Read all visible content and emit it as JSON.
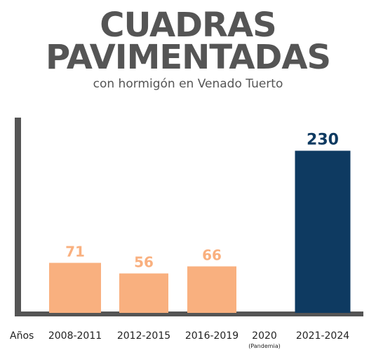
{
  "title_line1": "CUADRAS",
  "title_line2": "PAVIMENTADAS",
  "subtitle": "con hormigón en Venado Tuerto",
  "colors": {
    "bar_light": "#F9B07F",
    "bar_dark": "#0E3A61",
    "axis": "#555555",
    "text": "#222222"
  },
  "chart_data": {
    "type": "bar",
    "xlabel": "Años",
    "categories": [
      "2008-2011",
      "2012-2015",
      "2016-2019",
      "2020",
      "2021-2024"
    ],
    "category_notes": [
      "",
      "",
      "",
      "(Pandemia)",
      ""
    ],
    "values": [
      71,
      56,
      66,
      null,
      230
    ],
    "data_labels": [
      "71",
      "56",
      "66",
      "",
      "230"
    ],
    "highlight_index": 4,
    "ylim": [
      0,
      280
    ],
    "grid": false
  }
}
